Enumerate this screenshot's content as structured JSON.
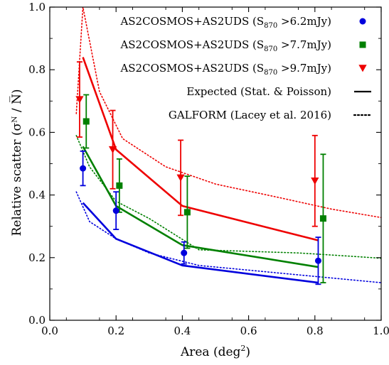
{
  "chart_data": {
    "type": "line",
    "xlabel": "Area (deg²)",
    "ylabel": "Relative scatter (σᴺ / N̅)",
    "xlim": [
      0.0,
      1.0
    ],
    "ylim": [
      0.0,
      1.0
    ],
    "xticks": [
      "0.0",
      "0.2",
      "0.4",
      "0.6",
      "0.8",
      "1.0"
    ],
    "yticks": [
      "0.0",
      "0.2",
      "0.4",
      "0.6",
      "0.8",
      "1.0"
    ],
    "legend_position": "top-right",
    "observed": [
      {
        "name": "AS2COSMOS+AS2UDS (S870 >6.2mJy)",
        "name_main": "AS2COSMOS+AS2UDS (S",
        "name_sub": "870",
        "name_tail": " >6.2mJy)",
        "color": "#0000dd",
        "marker": "circle",
        "points": [
          {
            "x": 0.1,
            "y": 0.485,
            "err_low": 0.055,
            "err_high": 0.055
          },
          {
            "x": 0.2,
            "y": 0.35,
            "err_low": 0.06,
            "err_high": 0.06
          },
          {
            "x": 0.405,
            "y": 0.215,
            "err_low": 0.035,
            "err_high": 0.035
          },
          {
            "x": 0.81,
            "y": 0.19,
            "err_low": 0.075,
            "err_high": 0.075
          }
        ]
      },
      {
        "name": "AS2COSMOS+AS2UDS (S870 >7.7mJy)",
        "name_main": "AS2COSMOS+AS2UDS (S",
        "name_sub": "870",
        "name_tail": " >7.7mJy)",
        "color": "#008000",
        "marker": "square",
        "points": [
          {
            "x": 0.11,
            "y": 0.635,
            "err_low": 0.085,
            "err_high": 0.085
          },
          {
            "x": 0.21,
            "y": 0.43,
            "err_low": 0.085,
            "err_high": 0.085
          },
          {
            "x": 0.415,
            "y": 0.345,
            "err_low": 0.115,
            "err_high": 0.115
          },
          {
            "x": 0.825,
            "y": 0.325,
            "err_low": 0.205,
            "err_high": 0.205
          }
        ]
      },
      {
        "name": "AS2COSMOS+AS2UDS (S870 >9.7mJy)",
        "name_main": "AS2COSMOS+AS2UDS (S",
        "name_sub": "870",
        "name_tail": " >9.7mJy)",
        "color": "#ee0000",
        "marker": "triangle-down",
        "points": [
          {
            "x": 0.09,
            "y": 0.705,
            "err_low": 0.12,
            "err_high": 0.12
          },
          {
            "x": 0.19,
            "y": 0.545,
            "err_low": 0.125,
            "err_high": 0.125
          },
          {
            "x": 0.395,
            "y": 0.455,
            "err_low": 0.12,
            "err_high": 0.12
          },
          {
            "x": 0.8,
            "y": 0.445,
            "err_low": 0.145,
            "err_high": 0.145
          }
        ]
      }
    ],
    "expected": [
      {
        "color": "#0000dd",
        "x": [
          0.1,
          0.2,
          0.4,
          0.81
        ],
        "y": [
          0.375,
          0.26,
          0.175,
          0.12
        ]
      },
      {
        "color": "#008000",
        "x": [
          0.1,
          0.2,
          0.4,
          0.81
        ],
        "y": [
          0.555,
          0.365,
          0.24,
          0.17
        ]
      },
      {
        "color": "#ee0000",
        "x": [
          0.1,
          0.2,
          0.4,
          0.81
        ],
        "y": [
          0.84,
          0.545,
          0.365,
          0.255
        ]
      }
    ],
    "galform": [
      {
        "color": "#0000dd",
        "x": [
          0.08,
          0.12,
          0.2,
          0.3,
          0.45,
          0.6,
          0.75,
          0.9,
          1.0
        ],
        "y": [
          0.41,
          0.315,
          0.26,
          0.215,
          0.175,
          0.16,
          0.145,
          0.13,
          0.12
        ]
      },
      {
        "color": "#008000",
        "x": [
          0.08,
          0.12,
          0.2,
          0.3,
          0.45,
          0.6,
          0.75,
          0.9,
          1.0
        ],
        "y": [
          0.59,
          0.49,
          0.38,
          0.325,
          0.225,
          0.22,
          0.215,
          0.205,
          0.198
        ]
      },
      {
        "color": "#ee0000",
        "x": [
          0.08,
          0.1,
          0.15,
          0.22,
          0.35,
          0.5,
          0.7,
          0.85,
          1.0
        ],
        "y": [
          0.66,
          1.0,
          0.73,
          0.58,
          0.49,
          0.435,
          0.39,
          0.355,
          0.328
        ]
      }
    ],
    "legend_lines": [
      {
        "label": "Expected (Stat. & Poisson)",
        "style": "solid"
      },
      {
        "label": "GALFORM (Lacey et al. 2016)",
        "style": "dotted"
      }
    ]
  }
}
